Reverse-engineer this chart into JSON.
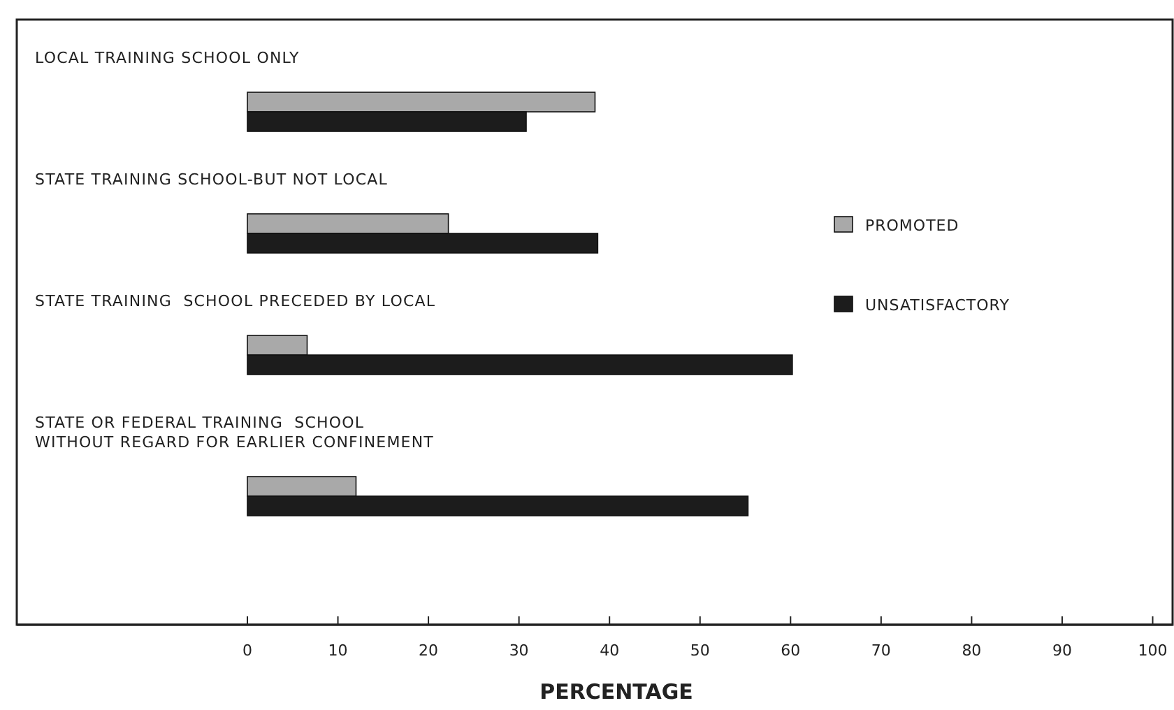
{
  "chart_data": {
    "type": "bar",
    "orientation": "horizontal",
    "xlabel": "PERCENTAGE",
    "categories": [
      "LOCAL TRAINING SCHOOL ONLY",
      "STATE TRAINING SCHOOL-BUT NOT LOCAL",
      "STATE TRAINING  SCHOOL PRECEDED BY LOCAL",
      "STATE OR FEDERAL TRAINING  SCHOOL\nWITHOUT REGARD FOR EARLIER CONFINEMENT"
    ],
    "series": [
      {
        "name": "PROMOTED",
        "color": "#a9a9a9",
        "values": [
          38.4,
          22.2,
          6.6,
          12
        ]
      },
      {
        "name": "UNSATISFACTORY",
        "color": "#1c1c1c",
        "values": [
          30.8,
          38.7,
          60.2,
          55.3
        ]
      }
    ],
    "xlim": [
      0,
      102.2
    ],
    "xticks": [
      0,
      10,
      20,
      30,
      40,
      50,
      60,
      70,
      80,
      90,
      100
    ],
    "legend": "right",
    "grid": false
  }
}
